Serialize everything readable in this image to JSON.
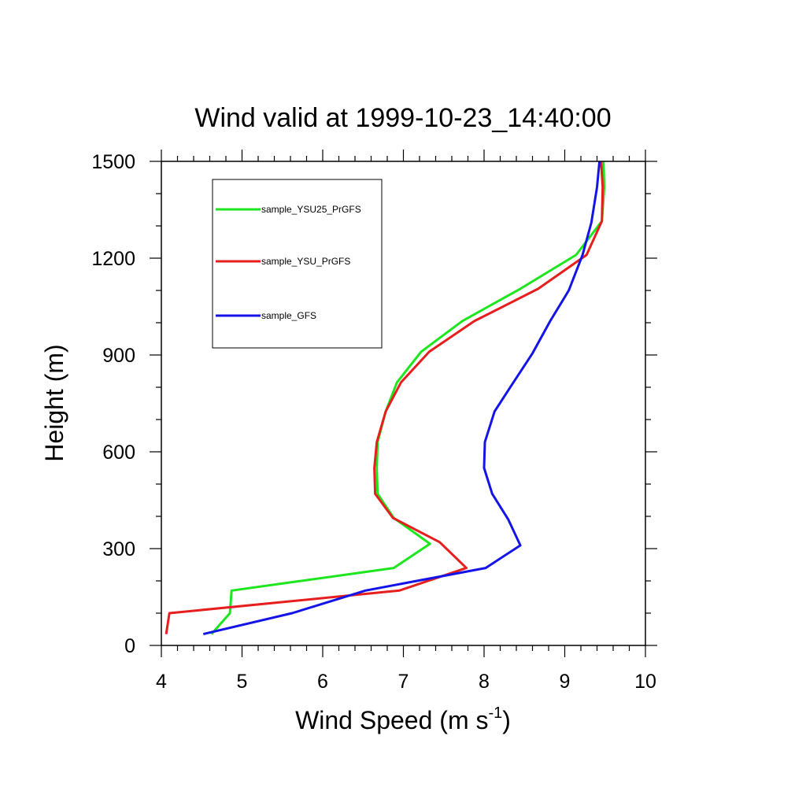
{
  "chart_data": {
    "type": "line",
    "title": "Wind valid at 1999-10-23_14:40:00",
    "xlabel": "Wind Speed (m s",
    "xlabel_superscript": "-1",
    "xlabel_suffix": ")",
    "ylabel": "Height (m)",
    "xlim": [
      4,
      10
    ],
    "ylim": [
      0,
      1500
    ],
    "x_ticks": [
      "4",
      "5",
      "6",
      "7",
      "8",
      "9",
      "10"
    ],
    "y_ticks": [
      "0",
      "300",
      "600",
      "900",
      "1200",
      "1500"
    ],
    "grid": false,
    "legend_position": "top-left",
    "series": [
      {
        "name": "sample_YSU25_PrGFS",
        "color": "#1ee61e",
        "points": [
          [
            4.62,
            35
          ],
          [
            4.85,
            100
          ],
          [
            4.87,
            170
          ],
          [
            6.88,
            240
          ],
          [
            7.33,
            315
          ],
          [
            6.88,
            395
          ],
          [
            6.68,
            470
          ],
          [
            6.67,
            550
          ],
          [
            6.68,
            630
          ],
          [
            6.78,
            725
          ],
          [
            6.92,
            815
          ],
          [
            7.22,
            910
          ],
          [
            7.73,
            1005
          ],
          [
            8.45,
            1105
          ],
          [
            9.14,
            1210
          ],
          [
            9.46,
            1315
          ],
          [
            9.49,
            1420
          ],
          [
            9.48,
            1500
          ]
        ]
      },
      {
        "name": "sample_YSU_PrGFS",
        "color": "#e61e1e",
        "points": [
          [
            4.06,
            35
          ],
          [
            4.1,
            100
          ],
          [
            6.95,
            170
          ],
          [
            7.78,
            240
          ],
          [
            7.45,
            320
          ],
          [
            6.87,
            395
          ],
          [
            6.65,
            470
          ],
          [
            6.64,
            550
          ],
          [
            6.67,
            630
          ],
          [
            6.78,
            725
          ],
          [
            6.97,
            815
          ],
          [
            7.32,
            910
          ],
          [
            7.88,
            1005
          ],
          [
            8.67,
            1105
          ],
          [
            9.27,
            1210
          ],
          [
            9.46,
            1315
          ],
          [
            9.47,
            1420
          ],
          [
            9.45,
            1500
          ]
        ]
      },
      {
        "name": "sample_GFS",
        "color": "#1414e6",
        "points": [
          [
            4.52,
            35
          ],
          [
            5.62,
            100
          ],
          [
            6.53,
            170
          ],
          [
            8.02,
            240
          ],
          [
            8.45,
            310
          ],
          [
            8.3,
            390
          ],
          [
            8.1,
            470
          ],
          [
            8.0,
            550
          ],
          [
            8.01,
            630
          ],
          [
            8.13,
            725
          ],
          [
            8.35,
            810
          ],
          [
            8.6,
            905
          ],
          [
            8.82,
            1005
          ],
          [
            9.05,
            1100
          ],
          [
            9.22,
            1210
          ],
          [
            9.33,
            1310
          ],
          [
            9.4,
            1420
          ],
          [
            9.43,
            1500
          ]
        ]
      }
    ]
  }
}
